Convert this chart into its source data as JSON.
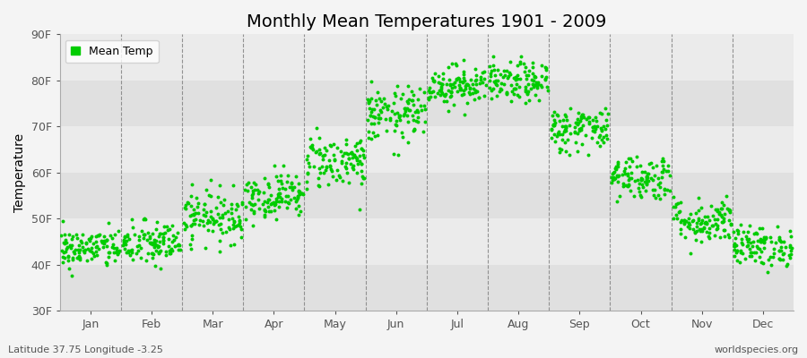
{
  "title": "Monthly Mean Temperatures 1901 - 2009",
  "ylabel": "Temperature",
  "bottom_left_text": "Latitude 37.75 Longitude -3.25",
  "bottom_right_text": "worldspecies.org",
  "legend_label": "Mean Temp",
  "dot_color": "#00cc00",
  "background_color": "#f4f4f4",
  "plot_bg_color": "#f4f4f4",
  "band_color_light": "#ebebeb",
  "band_color_dark": "#e0e0e0",
  "ylim": [
    30,
    90
  ],
  "ytick_labels": [
    "30F",
    "40F",
    "50F",
    "60F",
    "70F",
    "80F",
    "90F"
  ],
  "ytick_values": [
    30,
    40,
    50,
    60,
    70,
    80,
    90
  ],
  "months": [
    "Jan",
    "Feb",
    "Mar",
    "Apr",
    "May",
    "Jun",
    "Jul",
    "Aug",
    "Sep",
    "Oct",
    "Nov",
    "Dec"
  ],
  "month_means_F": [
    43.5,
    44.5,
    50.5,
    55.0,
    62.5,
    72.5,
    79.0,
    79.5,
    69.5,
    59.0,
    49.5,
    44.0
  ],
  "month_stds_F": [
    2.2,
    2.5,
    2.8,
    2.5,
    3.0,
    3.0,
    2.2,
    2.2,
    2.5,
    2.5,
    2.5,
    2.2
  ],
  "n_years": 109,
  "title_fontsize": 14,
  "axis_label_fontsize": 10,
  "tick_fontsize": 9,
  "footnote_fontsize": 8,
  "dot_size": 8
}
